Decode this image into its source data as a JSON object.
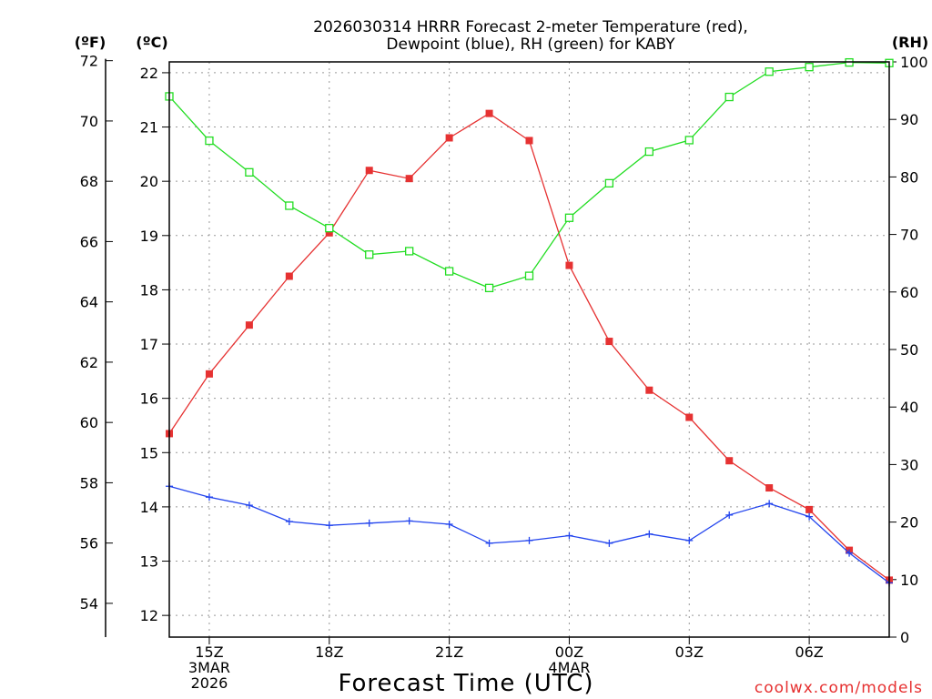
{
  "chart_data": {
    "type": "line",
    "title_line1": "2026030314 HRRR Forecast 2-meter Temperature (red),",
    "title_line2": "Dewpoint (blue), RH (green) for KABY",
    "xlabel": "Forecast Time (UTC)",
    "credit": "coolwx.com/models",
    "unit_f": "(ºF)",
    "unit_c": "(ºC)",
    "unit_rh": "(RH)",
    "x_hours": [
      0,
      1,
      2,
      3,
      4,
      5,
      6,
      7,
      8,
      9,
      10,
      11,
      12,
      13,
      14,
      15,
      16,
      17,
      18
    ],
    "x_range": [
      0,
      18
    ],
    "x_ticks": [
      {
        "hour": 1,
        "lines": [
          "15Z",
          "3MAR",
          "2026"
        ]
      },
      {
        "hour": 4,
        "lines": [
          "18Z"
        ]
      },
      {
        "hour": 7,
        "lines": [
          "21Z"
        ]
      },
      {
        "hour": 10,
        "lines": [
          "00Z",
          "4MAR"
        ]
      },
      {
        "hour": 13,
        "lines": [
          "03Z"
        ]
      },
      {
        "hour": 16,
        "lines": [
          "06Z"
        ]
      }
    ],
    "c_range": [
      11.6,
      22.2
    ],
    "c_ticks": [
      "12",
      "13",
      "14",
      "15",
      "16",
      "17",
      "18",
      "19",
      "20",
      "21",
      "22"
    ],
    "f_ticks": [
      "54",
      "56",
      "58",
      "60",
      "62",
      "64",
      "66",
      "68",
      "70",
      "72"
    ],
    "rh_range": [
      0,
      100
    ],
    "rh_ticks": [
      "0",
      "10",
      "20",
      "30",
      "40",
      "50",
      "60",
      "70",
      "80",
      "90",
      "100"
    ],
    "series": [
      {
        "name": "Temperature",
        "unit": "C",
        "color": "#e63232",
        "marker": "filled-square",
        "values": [
          15.35,
          16.45,
          17.35,
          18.25,
          19.05,
          20.2,
          20.05,
          20.8,
          21.25,
          20.75,
          18.45,
          17.05,
          16.15,
          15.65,
          14.85,
          14.35,
          13.95,
          13.2,
          12.65
        ]
      },
      {
        "name": "Dewpoint",
        "unit": "C",
        "color": "#2244ee",
        "marker": "plus",
        "values": [
          14.38,
          14.18,
          14.03,
          13.73,
          13.66,
          13.7,
          13.74,
          13.68,
          13.33,
          13.38,
          13.47,
          13.33,
          13.5,
          13.38,
          13.85,
          14.06,
          13.82,
          13.15,
          12.6
        ]
      },
      {
        "name": "RH",
        "unit": "%",
        "color": "#22dd22",
        "marker": "open-square",
        "values": [
          94.0,
          86.3,
          80.8,
          75.0,
          71.1,
          66.5,
          67.1,
          63.6,
          60.7,
          62.8,
          72.9,
          78.9,
          84.4,
          86.4,
          93.9,
          98.3,
          99.1,
          99.9,
          99.8
        ]
      }
    ]
  }
}
